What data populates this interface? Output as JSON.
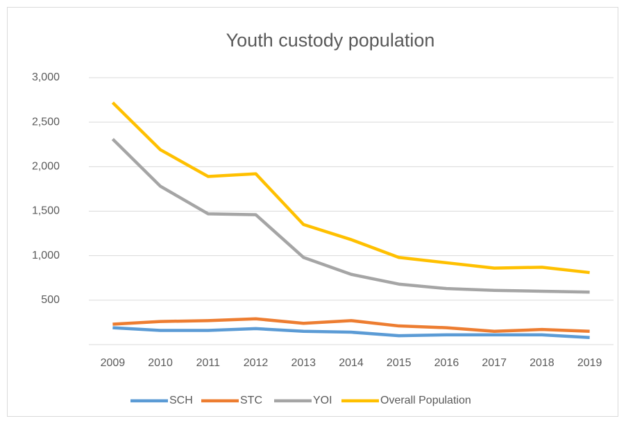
{
  "chart_data": {
    "type": "line",
    "title": "Youth custody population",
    "categories": [
      "2009",
      "2010",
      "2011",
      "2012",
      "2013",
      "2014",
      "2015",
      "2016",
      "2017",
      "2018",
      "2019"
    ],
    "series": [
      {
        "name": "SCH",
        "color": "#5b9bd5",
        "values": [
          190,
          160,
          160,
          180,
          150,
          140,
          100,
          110,
          110,
          110,
          80
        ]
      },
      {
        "name": "STC",
        "color": "#ed7d31",
        "values": [
          230,
          260,
          270,
          290,
          240,
          270,
          210,
          190,
          150,
          170,
          150
        ]
      },
      {
        "name": "YOI",
        "color": "#a5a5a5",
        "values": [
          2310,
          1780,
          1470,
          1460,
          980,
          790,
          680,
          630,
          610,
          600,
          590
        ]
      },
      {
        "name": "Overall Population",
        "color": "#ffc000",
        "values": [
          2720,
          2190,
          1890,
          1920,
          1350,
          1180,
          980,
          920,
          860,
          870,
          810
        ]
      }
    ],
    "ylim": [
      0,
      3000
    ],
    "yticks": [
      500,
      {
        "value": 1000,
        "label": "1,000"
      },
      {
        "value": 1500,
        "label": "1,500"
      },
      {
        "value": 2000,
        "label": "2,000"
      },
      {
        "value": 2500,
        "label": "2,500"
      },
      {
        "value": 3000,
        "label": "3,000"
      }
    ],
    "grid": true,
    "legend": "bottom"
  }
}
